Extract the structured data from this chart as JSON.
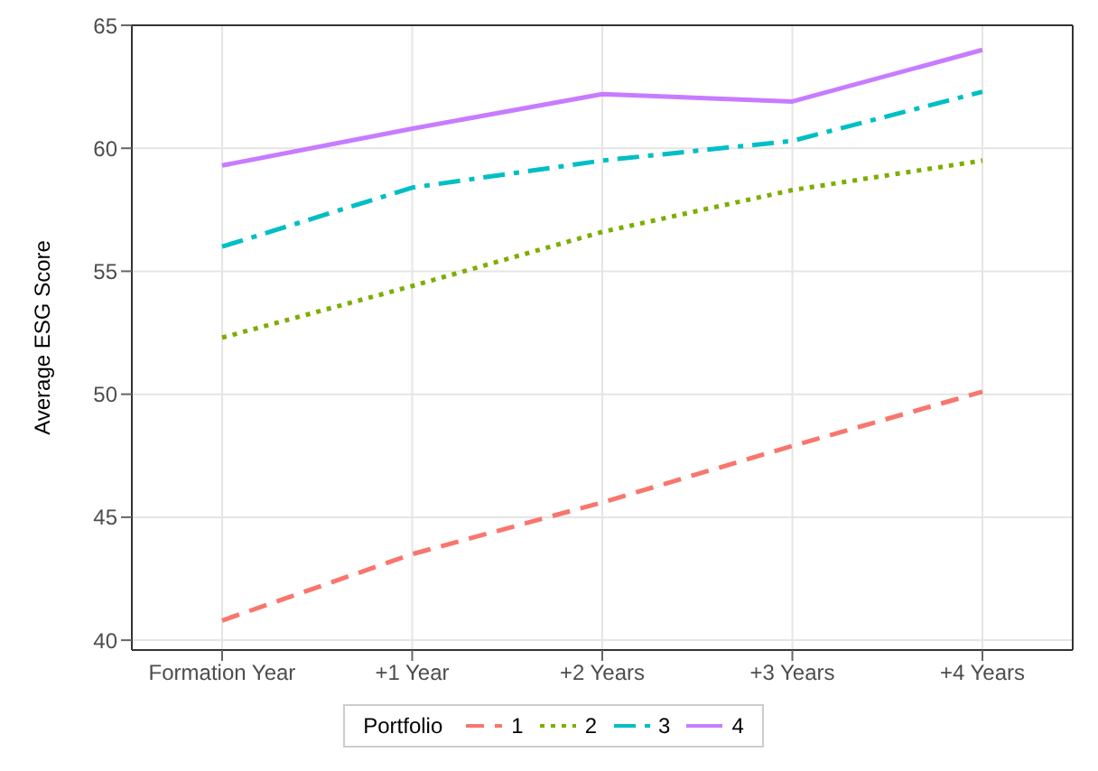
{
  "chart_data": {
    "type": "line",
    "ylabel": "Average ESG Score",
    "legend_title": "Portfolio",
    "categories": [
      "Formation Year",
      "+1 Year",
      "+2 Years",
      "+3 Years",
      "+4 Years"
    ],
    "series": [
      {
        "name": "1",
        "color": "#f8766d",
        "line_style": "dashed",
        "values": [
          40.8,
          43.5,
          45.6,
          47.9,
          50.1
        ]
      },
      {
        "name": "2",
        "color": "#7cae00",
        "line_style": "dotted",
        "values": [
          52.3,
          54.4,
          56.6,
          58.3,
          59.5
        ]
      },
      {
        "name": "3",
        "color": "#00bfc4",
        "line_style": "dashdot",
        "values": [
          56.0,
          58.4,
          59.5,
          60.3,
          62.3
        ]
      },
      {
        "name": "4",
        "color": "#c77cff",
        "line_style": "solid",
        "values": [
          59.3,
          60.8,
          62.2,
          61.9,
          64.0
        ]
      }
    ],
    "ylim": [
      39.6,
      65
    ],
    "yticks": [
      40,
      45,
      50,
      55,
      60,
      65
    ],
    "grid": true,
    "legend": "bottom",
    "marker": "none"
  }
}
